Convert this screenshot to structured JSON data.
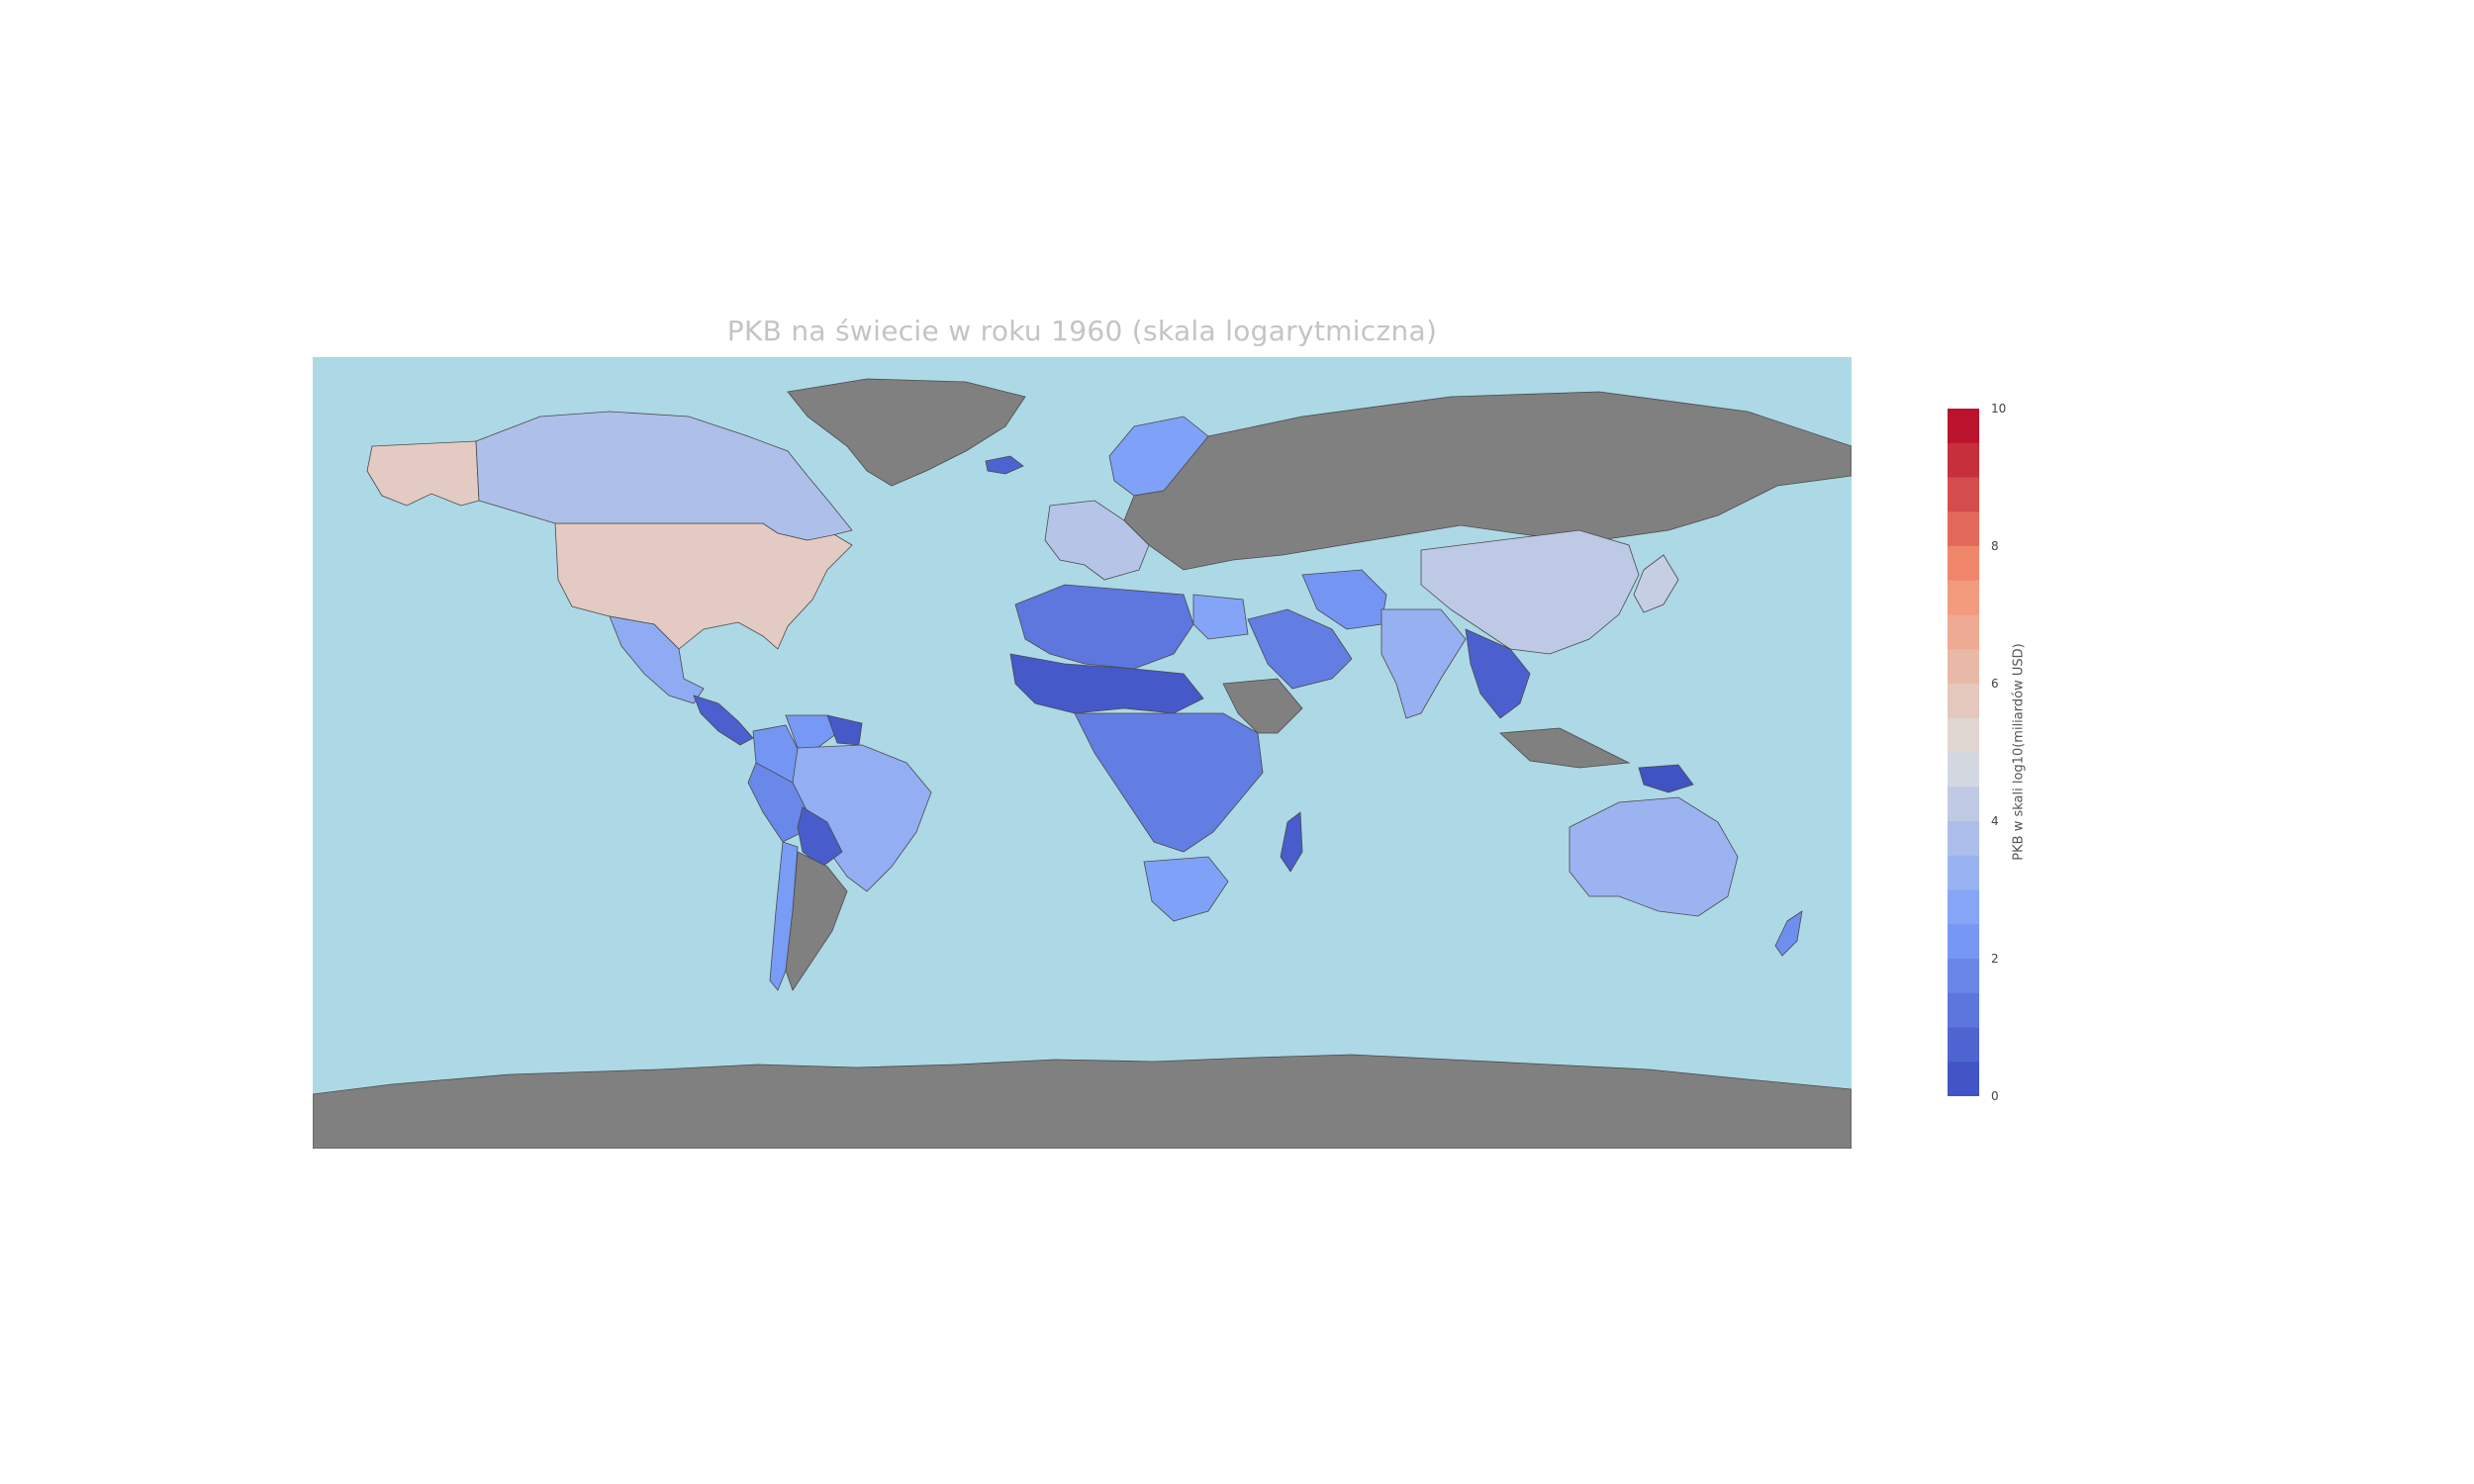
{
  "title": "PKB na świecie w roku 1960 (skala logarytmiczna)",
  "colorbar": {
    "label": "PKB w skali log10(miliardów USD)",
    "ticks": [
      "10",
      "8",
      "6",
      "4",
      "2",
      "0"
    ],
    "range": [
      0,
      10
    ],
    "colormap": "coolwarm"
  },
  "colors": {
    "ocean": "#add8e6",
    "no_data": "#808080",
    "border": "#4a4a4a"
  },
  "map_data": {
    "projection": "equirectangular",
    "value_unit": "log10(GDP, billions USD)",
    "regions": [
      {
        "name": "United States",
        "value": 5.6
      },
      {
        "name": "Alaska",
        "value": 5.6
      },
      {
        "name": "Canada",
        "value": 3.8
      },
      {
        "name": "Mexico",
        "value": 3.0
      },
      {
        "name": "Central America",
        "value": 0.6
      },
      {
        "name": "Colombia",
        "value": 2.2
      },
      {
        "name": "Venezuela",
        "value": 2.3
      },
      {
        "name": "Guianas",
        "value": 0.4
      },
      {
        "name": "Brazil",
        "value": 3.1
      },
      {
        "name": "Peru",
        "value": 1.8
      },
      {
        "name": "Bolivia",
        "value": 0.5
      },
      {
        "name": "Chile",
        "value": 2.4
      },
      {
        "name": "Greenland",
        "value": null
      },
      {
        "name": "Iceland",
        "value": 0.7
      },
      {
        "name": "Western Europe",
        "value": 4.0
      },
      {
        "name": "Scandinavia",
        "value": 2.6
      },
      {
        "name": "Eastern Europe / USSR",
        "value": null
      },
      {
        "name": "North Africa",
        "value": 1.3
      },
      {
        "name": "Sahel",
        "value": 0.4
      },
      {
        "name": "Egypt",
        "value": 2.7
      },
      {
        "name": "Central Africa",
        "value": 1.5
      },
      {
        "name": "South Africa",
        "value": 2.6
      },
      {
        "name": "Madagascar",
        "value": 0.5
      },
      {
        "name": "Arabian Peninsula",
        "value": 1.5
      },
      {
        "name": "Iran",
        "value": 2.2
      },
      {
        "name": "India",
        "value": 3.2
      },
      {
        "name": "China",
        "value": 4.2
      },
      {
        "name": "Japan",
        "value": 4.4
      },
      {
        "name": "Southeast Asia",
        "value": 0.6
      },
      {
        "name": "Australia",
        "value": 3.3
      },
      {
        "name": "New Zealand",
        "value": 2.0
      },
      {
        "name": "Papua New Guinea",
        "value": 0.2
      },
      {
        "name": "Antarctica",
        "value": null
      }
    ]
  }
}
